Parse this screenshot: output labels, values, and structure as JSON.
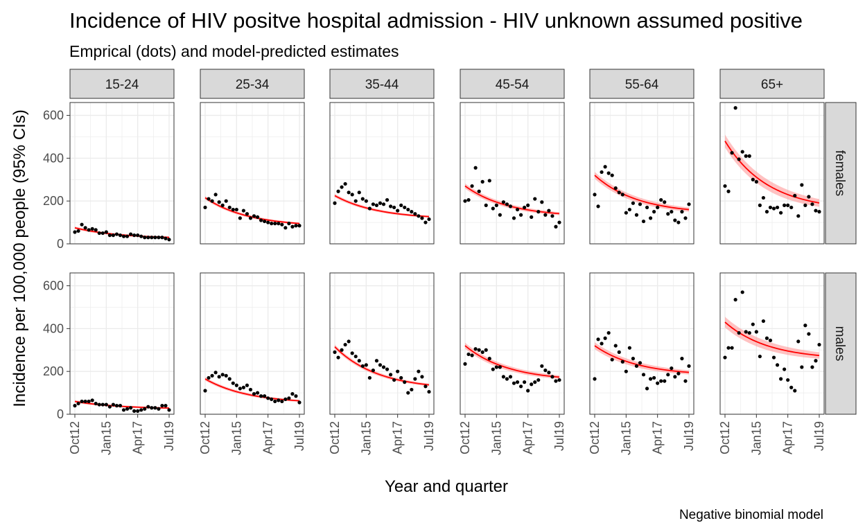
{
  "chart_data": {
    "type": "scatter",
    "title": "Incidence of HIV positve hospital admission - HIV unknown assumed positive",
    "subtitle": "Emprical (dots) and model-predicted estimates",
    "xlabel": "Year and quarter",
    "ylabel": "Incidence per 100,000 people (95% CIs)",
    "caption": "Negative binomial model",
    "x_ticks": [
      "Oct12",
      "Jan15",
      "Apr17",
      "Jul19"
    ],
    "y_ticks": [
      0,
      200,
      400,
      600
    ],
    "ylim": [
      0,
      660
    ],
    "grid": true,
    "facet_cols": [
      "15-24",
      "25-34",
      "35-44",
      "45-54",
      "55-64",
      "65+"
    ],
    "facet_rows": [
      "females",
      "males"
    ],
    "quarters": [
      "2012-Q4",
      "2013-Q1",
      "2013-Q2",
      "2013-Q3",
      "2013-Q4",
      "2014-Q1",
      "2014-Q2",
      "2014-Q3",
      "2014-Q4",
      "2015-Q1",
      "2015-Q2",
      "2015-Q3",
      "2015-Q4",
      "2016-Q1",
      "2016-Q2",
      "2016-Q3",
      "2016-Q4",
      "2017-Q1",
      "2017-Q2",
      "2017-Q3",
      "2017-Q4",
      "2018-Q1",
      "2018-Q2",
      "2018-Q3",
      "2018-Q4",
      "2019-Q1",
      "2019-Q2",
      "2019-Q3"
    ],
    "panels": [
      {
        "sex": "females",
        "age": "15-24",
        "observed": [
          55,
          60,
          90,
          75,
          65,
          70,
          65,
          50,
          50,
          55,
          40,
          40,
          45,
          40,
          35,
          35,
          45,
          40,
          40,
          35,
          30,
          30,
          30,
          30,
          30,
          30,
          25,
          20
        ],
        "fit_start": 75,
        "fit_end": 25,
        "ci": 6
      },
      {
        "sex": "females",
        "age": "25-34",
        "observed": [
          170,
          210,
          200,
          230,
          195,
          180,
          200,
          170,
          160,
          160,
          120,
          155,
          140,
          120,
          130,
          125,
          110,
          105,
          100,
          95,
          95,
          95,
          90,
          75,
          95,
          80,
          85,
          85
        ],
        "fit_start": 215,
        "fit_end": 80,
        "ci": 8
      },
      {
        "sex": "females",
        "age": "35-44",
        "observed": [
          190,
          245,
          265,
          280,
          240,
          230,
          200,
          240,
          210,
          200,
          165,
          185,
          180,
          190,
          185,
          205,
          175,
          170,
          155,
          180,
          170,
          160,
          150,
          140,
          130,
          120,
          100,
          115
        ],
        "fit_start": 225,
        "fit_end": 115,
        "ci": 8
      },
      {
        "sex": "females",
        "age": "45-54",
        "observed": [
          200,
          205,
          270,
          355,
          245,
          290,
          180,
          295,
          165,
          180,
          135,
          195,
          185,
          175,
          120,
          160,
          135,
          170,
          180,
          125,
          210,
          150,
          195,
          135,
          155,
          130,
          80,
          100
        ],
        "fit_start": 270,
        "fit_end": 125,
        "ci": 12
      },
      {
        "sex": "females",
        "age": "55-64",
        "observed": [
          230,
          175,
          335,
          360,
          330,
          320,
          260,
          240,
          230,
          145,
          160,
          190,
          135,
          185,
          105,
          170,
          120,
          150,
          170,
          205,
          195,
          140,
          150,
          110,
          100,
          150,
          120,
          185
        ],
        "fit_start": 320,
        "fit_end": 140,
        "ci": 16
      },
      {
        "sex": "females",
        "age": "65+",
        "observed": [
          270,
          245,
          425,
          635,
          395,
          430,
          410,
          410,
          300,
          290,
          180,
          215,
          150,
          170,
          165,
          170,
          145,
          180,
          180,
          170,
          225,
          130,
          275,
          180,
          220,
          185,
          155,
          150
        ],
        "fit_start": 480,
        "fit_end": 155,
        "ci": 30
      },
      {
        "sex": "males",
        "age": "15-24",
        "observed": [
          40,
          50,
          60,
          60,
          60,
          65,
          50,
          45,
          45,
          45,
          35,
          45,
          40,
          40,
          20,
          25,
          30,
          15,
          15,
          20,
          25,
          35,
          30,
          30,
          25,
          40,
          40,
          20
        ],
        "fit_start": 60,
        "fit_end": 25,
        "ci": 6
      },
      {
        "sex": "males",
        "age": "25-34",
        "observed": [
          110,
          170,
          180,
          195,
          175,
          185,
          180,
          165,
          145,
          135,
          120,
          125,
          135,
          115,
          95,
          100,
          85,
          85,
          75,
          70,
          60,
          65,
          60,
          70,
          75,
          95,
          85,
          55
        ],
        "fit_start": 165,
        "fit_end": 50,
        "ci": 8
      },
      {
        "sex": "males",
        "age": "35-44",
        "observed": [
          290,
          265,
          300,
          325,
          340,
          285,
          270,
          250,
          225,
          230,
          170,
          205,
          250,
          230,
          220,
          210,
          185,
          160,
          200,
          170,
          150,
          100,
          115,
          165,
          200,
          175,
          130,
          105
        ],
        "fit_start": 315,
        "fit_end": 115,
        "ci": 10
      },
      {
        "sex": "males",
        "age": "45-54",
        "observed": [
          235,
          280,
          275,
          305,
          300,
          290,
          300,
          260,
          210,
          220,
          220,
          175,
          165,
          175,
          145,
          150,
          130,
          150,
          110,
          140,
          150,
          160,
          225,
          205,
          195,
          175,
          155,
          160
        ],
        "fit_start": 320,
        "fit_end": 155,
        "ci": 14
      },
      {
        "sex": "males",
        "age": "55-64",
        "observed": [
          165,
          350,
          330,
          355,
          380,
          255,
          320,
          290,
          245,
          200,
          310,
          260,
          225,
          240,
          185,
          120,
          165,
          170,
          145,
          155,
          155,
          185,
          215,
          175,
          190,
          260,
          155,
          225
        ],
        "fit_start": 320,
        "fit_end": 180,
        "ci": 16
      },
      {
        "sex": "males",
        "age": "65+",
        "observed": [
          265,
          310,
          310,
          535,
          380,
          570,
          385,
          380,
          420,
          385,
          270,
          435,
          355,
          345,
          265,
          230,
          165,
          210,
          160,
          125,
          110,
          340,
          220,
          415,
          375,
          220,
          250,
          325
        ],
        "fit_start": 430,
        "fit_end": 255,
        "ci": 25
      }
    ]
  },
  "colors": {
    "points": "#000000",
    "fit_line": "#ff0000",
    "ci_band": "#ff9090",
    "panel_border": "#333333",
    "grid": "#ebebeb",
    "strip_fill": "#d9d9d9"
  }
}
